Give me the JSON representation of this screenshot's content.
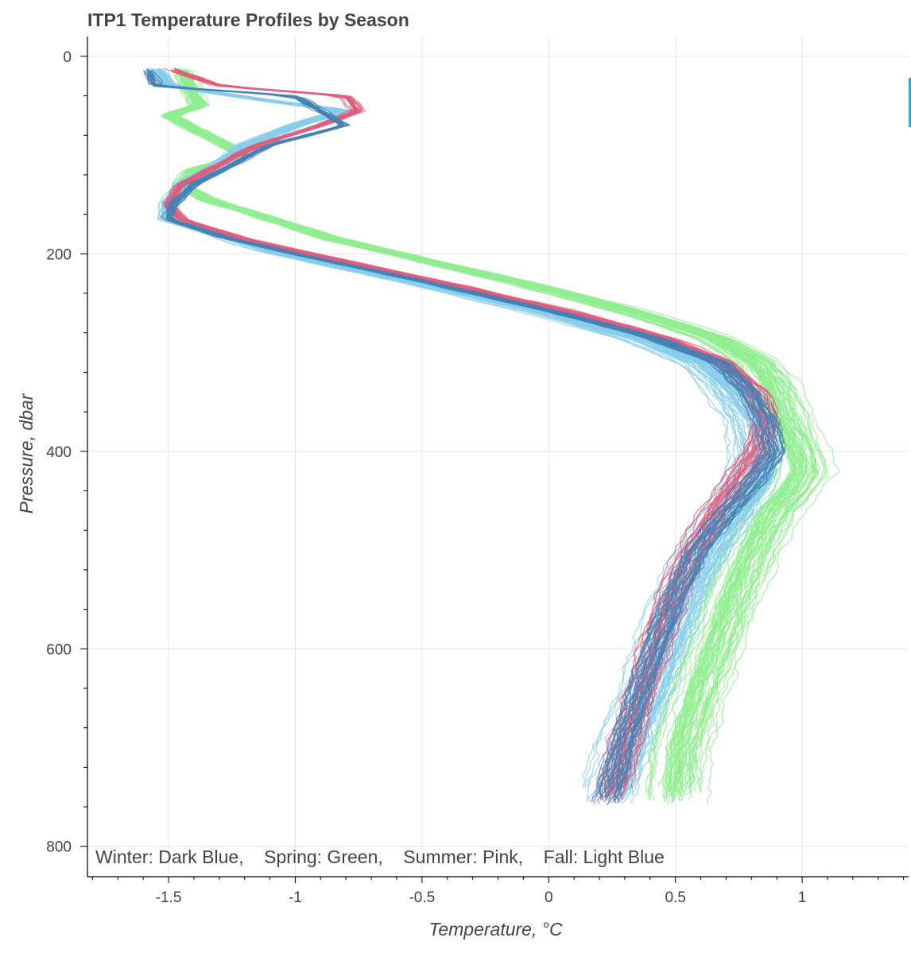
{
  "chart_data": {
    "type": "line",
    "title": "ITP1 Temperature Profiles by Season",
    "xlabel": "Temperature, °C",
    "ylabel": "Pressure, dbar",
    "xlim": [
      -1.82,
      1.42
    ],
    "ylim": [
      830,
      -20
    ],
    "y_inverted": true,
    "x_ticks": [
      {
        "value": -1.5,
        "label": "-1.5"
      },
      {
        "value": -1,
        "label": "-1"
      },
      {
        "value": -0.5,
        "label": "-0.5"
      },
      {
        "value": 0,
        "label": "0"
      },
      {
        "value": 0.5,
        "label": "0.5"
      },
      {
        "value": 1,
        "label": "1"
      }
    ],
    "y_ticks": [
      {
        "value": 0,
        "label": "0"
      },
      {
        "value": 200,
        "label": "200"
      },
      {
        "value": 400,
        "label": "400"
      },
      {
        "value": 600,
        "label": "600"
      },
      {
        "value": 800,
        "label": "800"
      }
    ],
    "grid": true,
    "annotation": "Winter: Dark Blue,    Spring: Green,    Summer: Pink,    Fall: Light Blue",
    "series": [
      {
        "season": "Spring",
        "color": "#90ee90",
        "profiles": 60,
        "spread": 0.13,
        "pressure": [
          12,
          30,
          50,
          60,
          80,
          100,
          115,
          130,
          145,
          160,
          185,
          200,
          230,
          260,
          285,
          310,
          330,
          360,
          400,
          420,
          440,
          460,
          500,
          550,
          600,
          650,
          700,
          740,
          760
        ],
        "temperature": [
          -1.45,
          -1.42,
          -1.38,
          -1.5,
          -1.35,
          -1.2,
          -1.4,
          -1.45,
          -1.35,
          -1.15,
          -0.85,
          -0.6,
          -0.1,
          0.35,
          0.65,
          0.82,
          0.88,
          0.92,
          0.98,
          1.0,
          0.95,
          0.88,
          0.8,
          0.72,
          0.65,
          0.58,
          0.52,
          0.5,
          0.5
        ]
      },
      {
        "season": "Fall",
        "color": "#87ceeb",
        "profiles": 60,
        "spread": 0.11,
        "pressure": [
          12,
          30,
          45,
          55,
          70,
          90,
          110,
          130,
          150,
          165,
          185,
          200,
          230,
          260,
          285,
          310,
          340,
          370,
          400,
          430,
          460,
          500,
          550,
          600,
          650,
          700,
          740,
          760
        ],
        "temperature": [
          -1.55,
          -1.5,
          -1.1,
          -0.8,
          -1.0,
          -1.2,
          -1.3,
          -1.45,
          -1.5,
          -1.5,
          -1.25,
          -1.05,
          -0.5,
          0.0,
          0.35,
          0.6,
          0.72,
          0.8,
          0.83,
          0.8,
          0.72,
          0.62,
          0.52,
          0.45,
          0.38,
          0.3,
          0.25,
          0.22
        ]
      },
      {
        "season": "Summer",
        "color": "#e05d7e",
        "profiles": 28,
        "spread": 0.09,
        "pressure": [
          12,
          30,
          40,
          55,
          70,
          90,
          110,
          130,
          150,
          165,
          185,
          200,
          230,
          260,
          285,
          310,
          340,
          370,
          400,
          430,
          460,
          500,
          550,
          600,
          650,
          700,
          740,
          760
        ],
        "temperature": [
          -1.5,
          -1.3,
          -0.8,
          -0.75,
          -0.9,
          -1.15,
          -1.3,
          -1.45,
          -1.5,
          -1.45,
          -1.2,
          -0.95,
          -0.4,
          0.1,
          0.45,
          0.7,
          0.82,
          0.86,
          0.82,
          0.74,
          0.66,
          0.57,
          0.48,
          0.42,
          0.36,
          0.3,
          0.26,
          0.24
        ]
      },
      {
        "season": "Winter",
        "color": "#4682b4",
        "profiles": 26,
        "spread": 0.08,
        "pressure": [
          12,
          30,
          40,
          55,
          70,
          90,
          110,
          130,
          150,
          165,
          185,
          200,
          230,
          260,
          285,
          310,
          340,
          370,
          400,
          430,
          460,
          500,
          550,
          600,
          650,
          700,
          740,
          760
        ],
        "temperature": [
          -1.58,
          -1.55,
          -1.0,
          -0.9,
          -0.8,
          -1.1,
          -1.25,
          -1.4,
          -1.48,
          -1.5,
          -1.25,
          -1.0,
          -0.45,
          0.05,
          0.42,
          0.68,
          0.8,
          0.87,
          0.9,
          0.82,
          0.72,
          0.6,
          0.5,
          0.43,
          0.36,
          0.3,
          0.26,
          0.24
        ]
      }
    ]
  }
}
